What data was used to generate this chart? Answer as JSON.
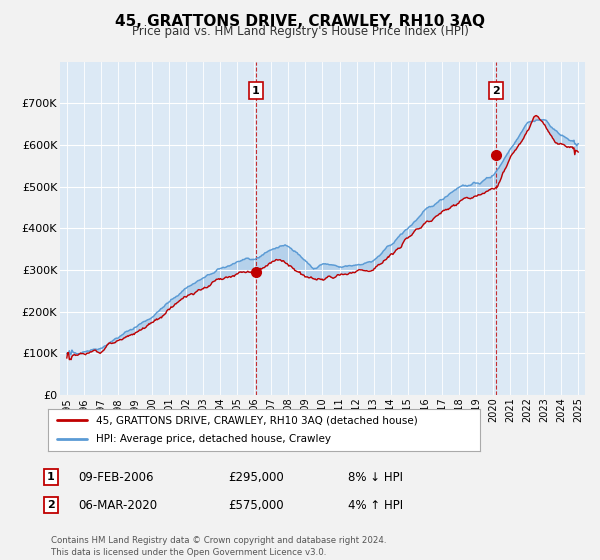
{
  "title": "45, GRATTONS DRIVE, CRAWLEY, RH10 3AQ",
  "subtitle": "Price paid vs. HM Land Registry's House Price Index (HPI)",
  "legend_line1": "45, GRATTONS DRIVE, CRAWLEY, RH10 3AQ (detached house)",
  "legend_line2": "HPI: Average price, detached house, Crawley",
  "annotation1_label": "1",
  "annotation1_date": "09-FEB-2006",
  "annotation1_price": "£295,000",
  "annotation1_hpi": "8% ↓ HPI",
  "annotation1_year": 2006.1,
  "annotation1_value": 295000,
  "annotation2_label": "2",
  "annotation2_date": "06-MAR-2020",
  "annotation2_price": "£575,000",
  "annotation2_hpi": "4% ↑ HPI",
  "annotation2_year": 2020.18,
  "annotation2_value": 575000,
  "footer": "Contains HM Land Registry data © Crown copyright and database right 2024.\nThis data is licensed under the Open Government Licence v3.0.",
  "ylim": [
    0,
    800000
  ],
  "yticks": [
    0,
    100000,
    200000,
    300000,
    400000,
    500000,
    600000,
    700000
  ],
  "ytick_labels": [
    "£0",
    "£100K",
    "£200K",
    "£300K",
    "£400K",
    "£500K",
    "£600K",
    "£700K"
  ],
  "hpi_color": "#5b9bd5",
  "price_color": "#c00000",
  "background_color": "#f2f2f2",
  "plot_bg_color": "#dce9f5",
  "grid_color": "#ffffff"
}
